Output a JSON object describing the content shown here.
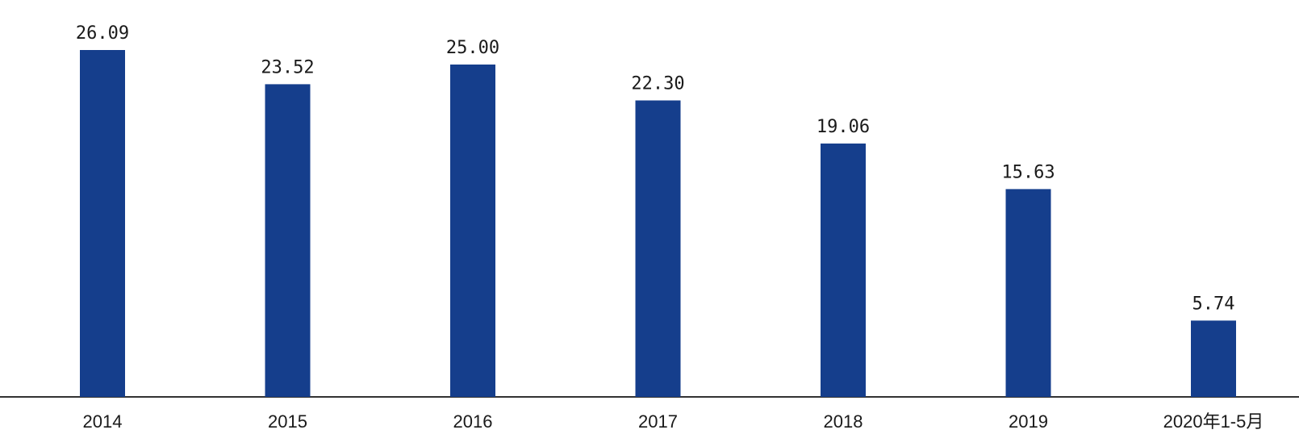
{
  "colors": {
    "bar": "#153e8c",
    "axis": "#333333",
    "text": "#1a1a1a"
  },
  "chart_data": {
    "type": "bar",
    "categories": [
      "2014",
      "2015",
      "2016",
      "2017",
      "2018",
      "2019",
      "2020年1-5月"
    ],
    "values": [
      26.09,
      23.52,
      25.0,
      22.3,
      19.06,
      15.63,
      5.74
    ],
    "value_labels": [
      "26.09",
      "23.52",
      "25.00",
      "22.30",
      "19.06",
      "15.63",
      "5.74"
    ],
    "title": "",
    "xlabel": "",
    "ylabel": "",
    "ylim": [
      0,
      30
    ],
    "grid": false,
    "legend": "none"
  }
}
